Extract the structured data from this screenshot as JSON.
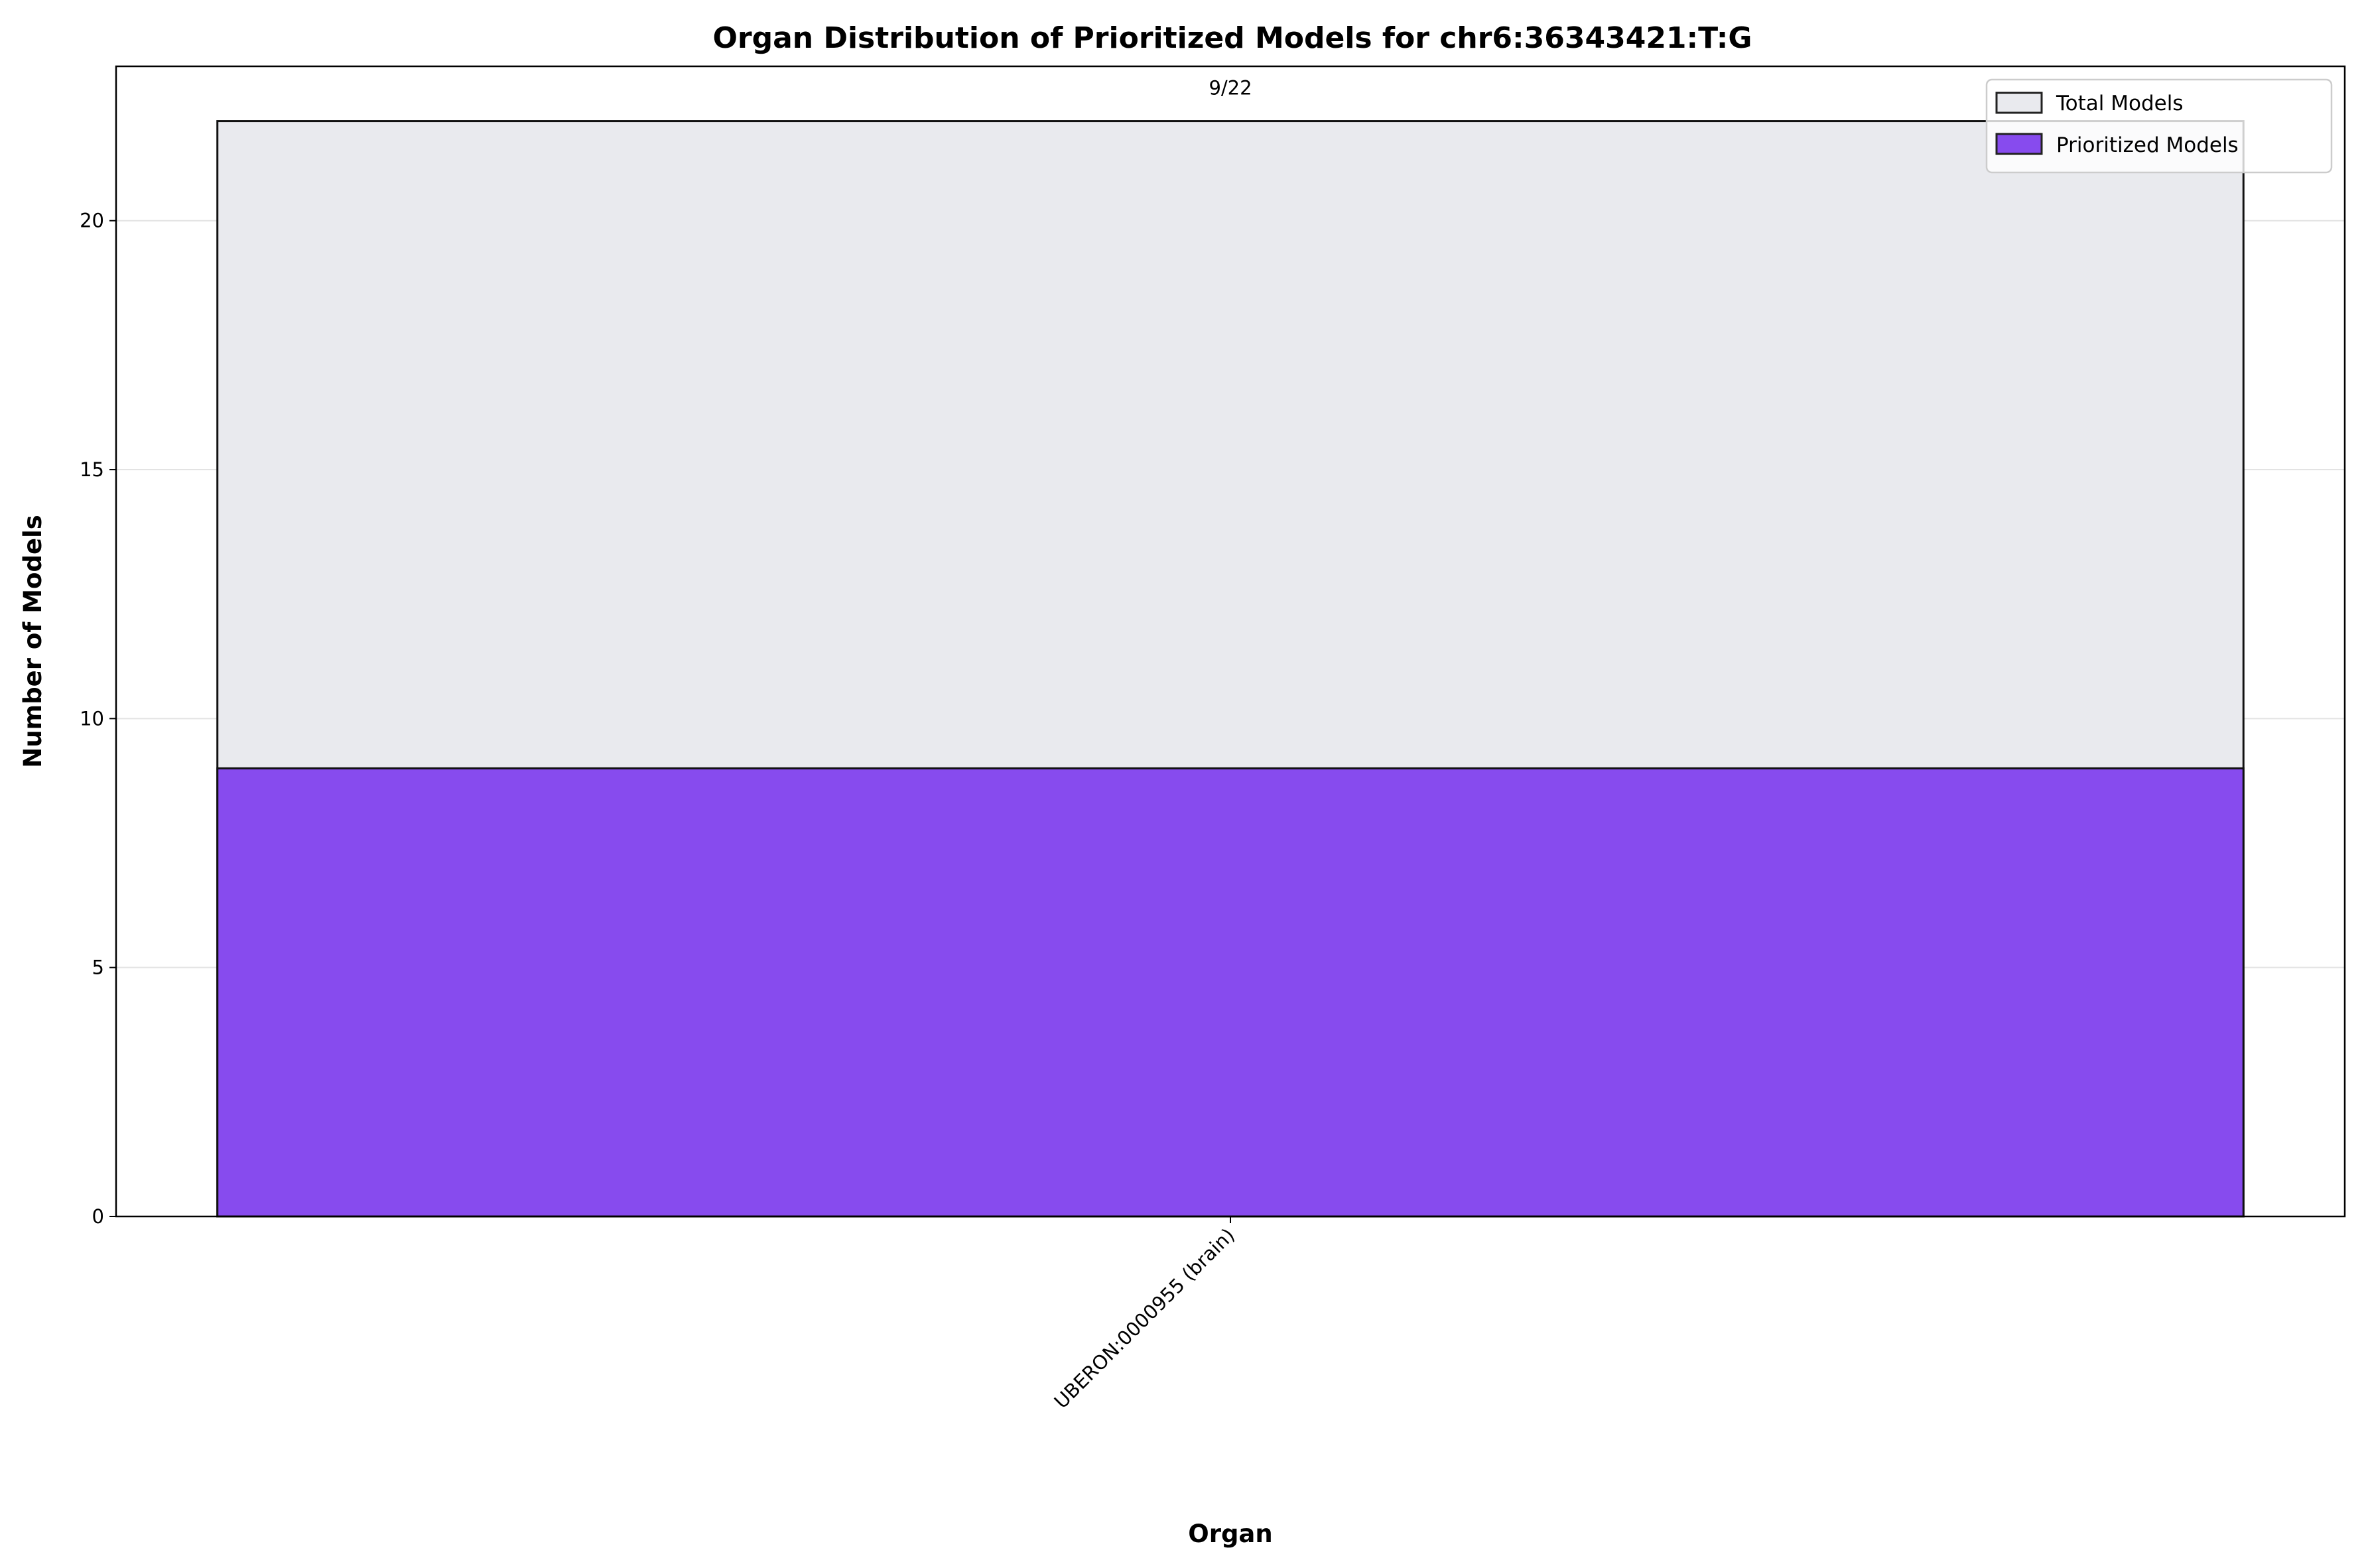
{
  "chart_data": {
    "type": "bar",
    "title": "Organ Distribution of Prioritized Models for chr6:36343421:T:G",
    "xlabel": "Organ",
    "ylabel": "Number of Models",
    "categories": [
      "UBERON:0000955 (brain)"
    ],
    "series": [
      {
        "name": "Total Models",
        "values": [
          22
        ],
        "color": "#e9eaee"
      },
      {
        "name": "Prioritized Models",
        "values": [
          9
        ],
        "color": "#874bee"
      }
    ],
    "data_labels": [
      "9/22"
    ],
    "ylim": [
      0,
      23.1
    ],
    "yticks": [
      0,
      5,
      10,
      15,
      20
    ],
    "ytick_labels": [
      "0",
      "5",
      "10",
      "15",
      "20"
    ],
    "grid": "y",
    "legend": "top-right",
    "overlay": true
  }
}
